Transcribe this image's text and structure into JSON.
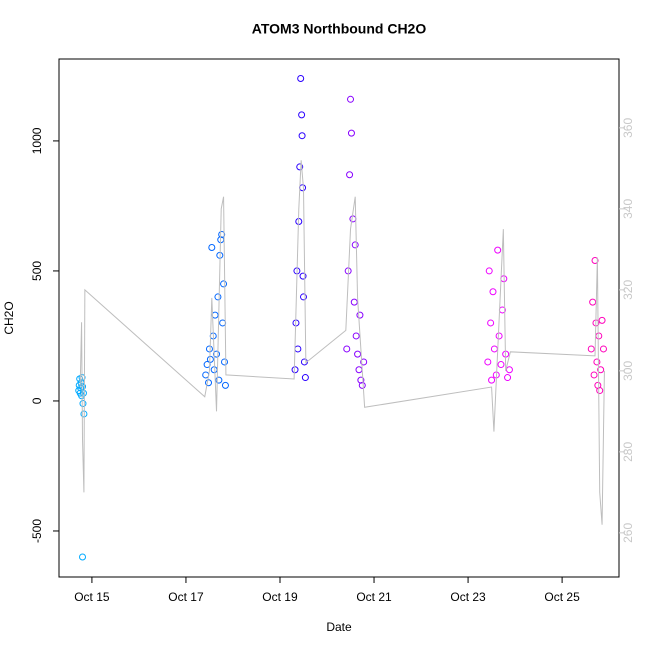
{
  "chart_data": {
    "type": "scatter",
    "title": "ATOM3 Northbound CH2O",
    "xlabel": "Date",
    "ylabel": "CH2O",
    "xlim": [
      14.3,
      26.21
    ],
    "xticks": [
      {
        "value": 15,
        "label": "Oct 15"
      },
      {
        "value": 17,
        "label": "Oct 17"
      },
      {
        "value": 19,
        "label": "Oct 19"
      },
      {
        "value": 21,
        "label": "Oct 21"
      },
      {
        "value": 23,
        "label": "Oct 23"
      },
      {
        "value": 25,
        "label": "Oct 25"
      }
    ],
    "ylim": [
      -677,
      1315
    ],
    "yticks": [
      -500,
      0,
      500,
      1000
    ],
    "y2lim": [
      249.1,
      377
    ],
    "y2ticks": [
      260,
      280,
      300,
      320,
      340,
      360
    ],
    "y2color": "#c8c8c8",
    "series": [
      {
        "type": "scatter",
        "color": "#00aaff",
        "x": [
          14.72,
          14.73,
          14.74,
          14.75,
          14.76,
          14.77,
          14.78,
          14.79,
          14.8,
          14.81,
          14.82,
          14.83,
          14.8
        ],
        "values": [
          40,
          60,
          85,
          30,
          50,
          70,
          20,
          90,
          55,
          -10,
          30,
          -50,
          -600
        ]
      },
      {
        "type": "scatter",
        "color": "#0066ff",
        "x": [
          17.42,
          17.45,
          17.48,
          17.5,
          17.52,
          17.55,
          17.58,
          17.6,
          17.62,
          17.65,
          17.68,
          17.7,
          17.72,
          17.74,
          17.76,
          17.78,
          17.8,
          17.82,
          17.84
        ],
        "values": [
          100,
          140,
          70,
          200,
          160,
          590,
          250,
          120,
          330,
          180,
          400,
          80,
          560,
          620,
          640,
          300,
          450,
          150,
          60
        ]
      },
      {
        "type": "scatter",
        "color": "#2a00ff",
        "x": [
          19.32,
          19.34,
          19.36,
          19.38,
          19.4,
          19.42,
          19.44,
          19.46,
          19.48,
          19.5,
          19.52,
          19.54,
          19.49,
          19.47
        ],
        "values": [
          120,
          300,
          500,
          200,
          690,
          900,
          1240,
          1100,
          820,
          400,
          150,
          90,
          480,
          1020
        ]
      },
      {
        "type": "scatter",
        "color": "#8800ff",
        "x": [
          20.42,
          20.45,
          20.48,
          20.5,
          20.52,
          20.55,
          20.58,
          20.6,
          20.62,
          20.65,
          20.68,
          20.7,
          20.72,
          20.75,
          20.78
        ],
        "values": [
          200,
          500,
          870,
          1160,
          1030,
          700,
          380,
          600,
          250,
          180,
          120,
          330,
          80,
          60,
          150
        ]
      },
      {
        "type": "scatter",
        "color": "#ee00ff",
        "x": [
          23.42,
          23.45,
          23.48,
          23.5,
          23.53,
          23.56,
          23.6,
          23.63,
          23.66,
          23.7,
          23.73,
          23.76,
          23.8,
          23.84,
          23.88
        ],
        "values": [
          150,
          500,
          300,
          80,
          420,
          200,
          100,
          580,
          250,
          140,
          350,
          470,
          180,
          90,
          120
        ]
      },
      {
        "type": "scatter",
        "color": "#ff00bb",
        "x": [
          25.62,
          25.65,
          25.68,
          25.7,
          25.72,
          25.74,
          25.76,
          25.78,
          25.8,
          25.82,
          25.85,
          25.88
        ],
        "values": [
          200,
          380,
          100,
          540,
          300,
          150,
          60,
          250,
          40,
          120,
          310,
          200
        ]
      },
      {
        "type": "line",
        "axis": "y2",
        "color": "#bebebe",
        "x": [
          14.75,
          14.78,
          14.8,
          14.83,
          14.85,
          17.4,
          17.5,
          17.55,
          17.65,
          17.75,
          17.8,
          17.85,
          19.3,
          19.4,
          19.45,
          19.5,
          19.55,
          20.4,
          20.5,
          20.6,
          20.65,
          20.8,
          23.5,
          23.55,
          23.65,
          23.75,
          23.8,
          23.9,
          25.7,
          25.75,
          25.8,
          25.85,
          25.9
        ],
        "values": [
          296,
          312,
          283,
          270,
          320,
          293.6,
          300,
          318,
          290,
          340,
          343,
          299,
          298,
          340,
          352,
          345,
          302,
          310,
          335,
          343,
          318,
          291,
          296,
          285,
          310,
          335,
          300,
          304.7,
          303.7,
          328,
          270,
          262,
          300
        ]
      }
    ]
  }
}
